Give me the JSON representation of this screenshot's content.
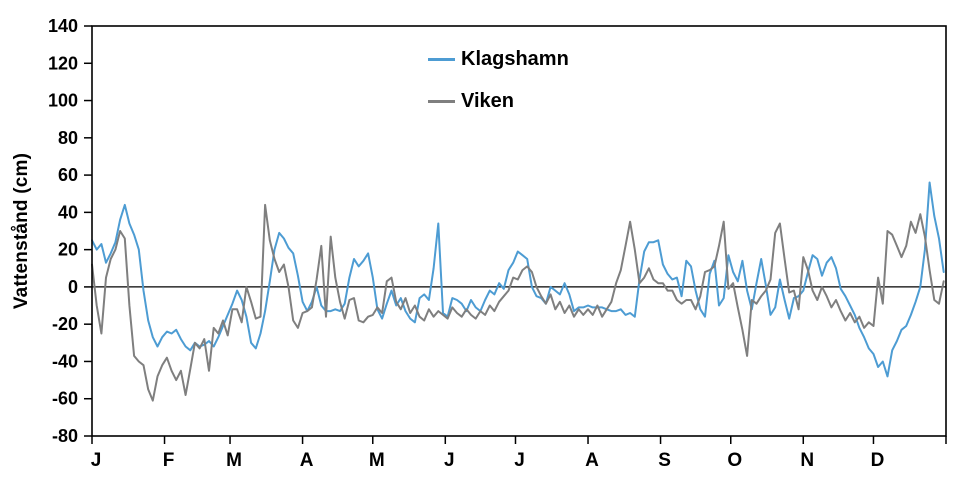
{
  "chart_data": {
    "type": "line",
    "title": "",
    "ylabel": "Vattenstånd (cm)",
    "ylim": [
      -80,
      140
    ],
    "yticks": [
      140,
      120,
      100,
      80,
      60,
      40,
      20,
      0,
      -20,
      -40,
      -60,
      -80
    ],
    "zero_line": true,
    "grid": false,
    "legend_position": "top-center",
    "x_unit": "day-of-year",
    "x_step_days": 2,
    "days_in_year": 365,
    "month_labels": [
      "J",
      "F",
      "M",
      "A",
      "M",
      "J",
      "J",
      "A",
      "S",
      "O",
      "N",
      "D"
    ],
    "month_start_days": [
      0,
      31,
      59,
      90,
      120,
      151,
      181,
      212,
      243,
      273,
      304,
      334
    ],
    "series": [
      {
        "name": "Klagshamn",
        "color": "#4D9CD3",
        "values": [
          25,
          20,
          23,
          13,
          18,
          24,
          36,
          44,
          34,
          28,
          20,
          -2,
          -18,
          -27,
          -32,
          -27,
          -24,
          -25,
          -23,
          -28,
          -32,
          -34,
          -30,
          -32,
          -31,
          -29,
          -32,
          -27,
          -21,
          -15,
          -9,
          -2,
          -7,
          -16,
          -30,
          -33,
          -25,
          -13,
          3,
          20,
          29,
          26,
          21,
          18,
          6,
          -8,
          -13,
          -8,
          0,
          -10,
          -13,
          -13,
          -12,
          -13,
          -9,
          5,
          15,
          11,
          14,
          18,
          5,
          -12,
          -17,
          -9,
          -2,
          -10,
          -6,
          -13,
          -17,
          -19,
          -6,
          -4,
          -7,
          10,
          34,
          -14,
          -16,
          -6,
          -7,
          -9,
          -13,
          -7,
          -11,
          -13,
          -7,
          -2,
          -4,
          2,
          -1,
          9,
          13,
          19,
          17,
          15,
          0,
          -5,
          -6,
          -9,
          0,
          -2,
          -4,
          2,
          -4,
          -13,
          -11,
          -11,
          -10,
          -11,
          -11,
          -11,
          -12,
          -13,
          -13,
          -12,
          -15,
          -14,
          -16,
          4,
          19,
          24,
          24,
          25,
          12,
          7,
          4,
          5,
          -5,
          14,
          11,
          -2,
          -12,
          -16,
          7,
          14,
          -10,
          -6,
          17,
          8,
          3,
          14,
          -2,
          -12,
          2,
          15,
          1,
          -15,
          -11,
          4,
          -7,
          -17,
          -6,
          -5,
          -2,
          8,
          17,
          15,
          6,
          13,
          16,
          10,
          -1,
          -5,
          -10,
          -15,
          -22,
          -27,
          -33,
          -36,
          -43,
          -40,
          -48,
          -34,
          -29,
          -23,
          -21,
          -15,
          -8,
          0,
          20,
          56,
          38,
          26,
          8
        ]
      },
      {
        "name": "Viken",
        "color": "#7F7F7F",
        "values": [
          12,
          -10,
          -25,
          5,
          15,
          20,
          30,
          26,
          -10,
          -37,
          -40,
          -42,
          -55,
          -61,
          -48,
          -42,
          -38,
          -45,
          -50,
          -45,
          -58,
          -44,
          -30,
          -33,
          -28,
          -45,
          -22,
          -25,
          -18,
          -26,
          -12,
          -12,
          -19,
          0,
          -8,
          -17,
          -16,
          44,
          25,
          15,
          8,
          12,
          0,
          -18,
          -22,
          -14,
          -13,
          -11,
          4,
          22,
          -16,
          27,
          5,
          -8,
          -17,
          -7,
          -6,
          -18,
          -19,
          -16,
          -15,
          -11,
          -14,
          3,
          5,
          -8,
          -12,
          -6,
          -14,
          -10,
          -16,
          -18,
          -12,
          -16,
          -13,
          -15,
          -17,
          -11,
          -14,
          -16,
          -12,
          -15,
          -17,
          -13,
          -15,
          -10,
          -13,
          -8,
          -5,
          -2,
          5,
          4,
          9,
          11,
          8,
          0,
          -5,
          -9,
          -4,
          -12,
          -8,
          -14,
          -10,
          -16,
          -12,
          -15,
          -12,
          -15,
          -10,
          -16,
          -12,
          -8,
          2,
          9,
          22,
          35,
          20,
          2,
          5,
          10,
          4,
          2,
          2,
          -2,
          -2,
          -7,
          -9,
          -7,
          -7,
          -12,
          -5,
          8,
          9,
          11,
          22,
          35,
          -1,
          2,
          -11,
          -23,
          -37,
          -7,
          -9,
          -5,
          -2,
          4,
          29,
          34,
          15,
          -3,
          -2,
          -12,
          16,
          9,
          -2,
          -7,
          0,
          -5,
          -11,
          -7,
          -13,
          -18,
          -14,
          -19,
          -16,
          -22,
          -19,
          -21,
          5,
          -9,
          30,
          28,
          22,
          16,
          22,
          35,
          29,
          39,
          27,
          9,
          -7,
          -9,
          3
        ]
      }
    ]
  }
}
